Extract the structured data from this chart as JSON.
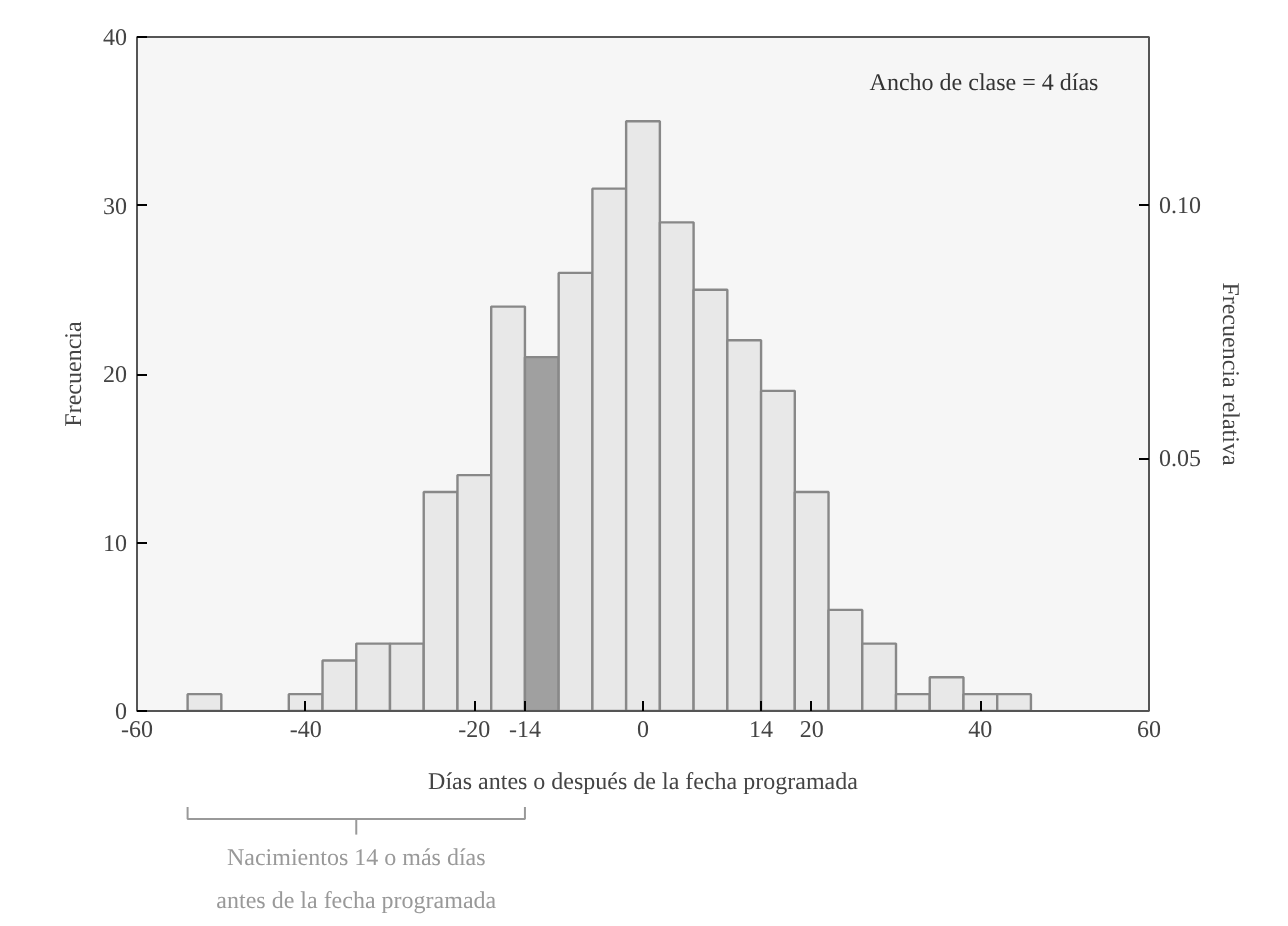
{
  "chart_data": {
    "type": "histogram",
    "bins": [
      -54,
      -50,
      -46,
      -42,
      -38,
      -34,
      -30,
      -26,
      -22,
      -18,
      -14,
      -10,
      -6,
      -2,
      2,
      6,
      10,
      14,
      18,
      22,
      26,
      30,
      34,
      38,
      42,
      46
    ],
    "values": [
      1,
      0,
      0,
      1,
      3,
      4,
      4,
      13,
      14,
      24,
      21,
      26,
      31,
      35,
      29,
      25,
      22,
      19,
      13,
      6,
      4,
      1,
      2,
      1,
      1
    ],
    "colors": [
      "#e8e8e8",
      "#e8e8e8",
      "#e8e8e8",
      "#e8e8e8",
      "#e8e8e8",
      "#e8e8e8",
      "#e8e8e8",
      "#e8e8e8",
      "#e8e8e8",
      "#e8e8e8",
      "#a0a0a0",
      "#e8e8e8",
      "#e8e8e8",
      "#e8e8e8",
      "#e8e8e8",
      "#e8e8e8",
      "#e8e8e8",
      "#e8e8e8",
      "#e8e8e8",
      "#e8e8e8",
      "#e8e8e8",
      "#e8e8e8",
      "#e8e8e8",
      "#e8e8e8",
      "#e8e8e8"
    ],
    "xlabel": "Días antes o después de la fecha programada",
    "ylabel": "Frecuencia",
    "y2label": "Frecuencia relativa",
    "xlim": [
      -60,
      60
    ],
    "xticks": [
      -60,
      -40,
      -20,
      -14,
      0,
      14,
      20,
      40,
      60
    ],
    "ylim": [
      0,
      40
    ],
    "yticks": [
      0,
      10,
      20,
      30,
      40
    ],
    "y2lim": [
      0,
      0.1333
    ],
    "y2ticks": [
      {
        "value": 0.05,
        "label": "0.05"
      },
      {
        "value": 0.1,
        "label": "0.10"
      }
    ],
    "annotations": [
      "Ancho de clase = 4 días",
      "Nacimientos 14 o más días antes de la fecha programada"
    ]
  }
}
